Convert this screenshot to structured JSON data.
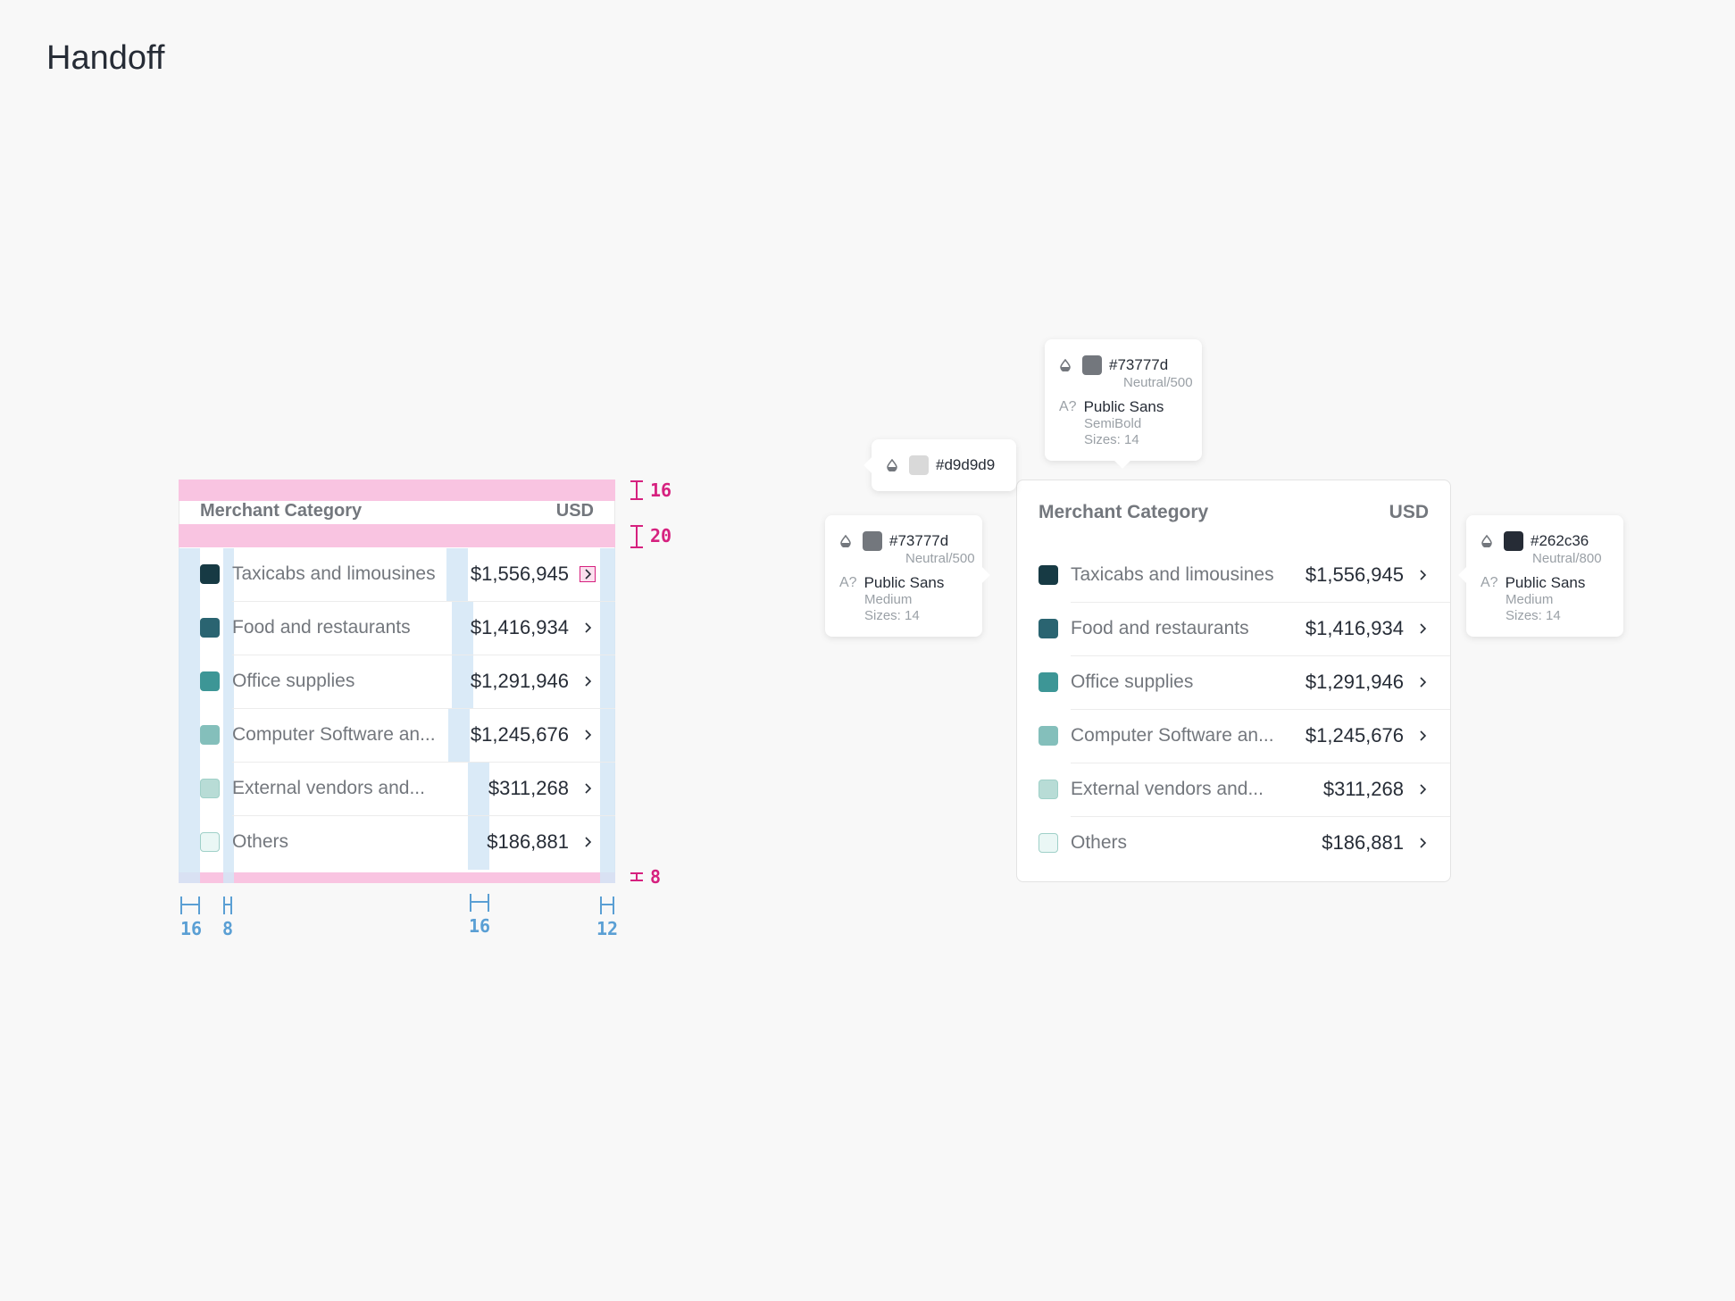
{
  "page": {
    "title": "Handoff"
  },
  "card": {
    "header": {
      "category": "Merchant Category",
      "currency": "USD"
    },
    "rows": [
      {
        "label": "Taxicabs and limousines",
        "value": "$1,556,945",
        "color": "#173a44"
      },
      {
        "label": "Food and restaurants",
        "value": "$1,416,934",
        "color": "#2a6471"
      },
      {
        "label": "Office supplies",
        "value": "$1,291,946",
        "color": "#3d9696"
      },
      {
        "label": "Computer Software an...",
        "value": "$1,245,676",
        "color": "#84bfbb"
      },
      {
        "label": "External vendors and...",
        "value": "$311,268",
        "color": "#b8dcd6"
      },
      {
        "label": "Others",
        "value": "$186,881",
        "color": "#eaf7f5"
      }
    ]
  },
  "redlines": {
    "vertical": [
      "16",
      "20",
      "8"
    ],
    "horizontal": [
      "16",
      "8",
      "16",
      "12"
    ]
  },
  "tooltips": {
    "border": {
      "hex": "#d9d9d9",
      "color": "#d9d9d9"
    },
    "header": {
      "hex": "#73777d",
      "token": "Neutral/500",
      "font": "Public Sans",
      "weight": "SemiBold",
      "sizes": "Sizes: 14",
      "color": "#73777d"
    },
    "label": {
      "hex": "#73777d",
      "token": "Neutral/500",
      "font": "Public Sans",
      "weight": "Medium",
      "sizes": "Sizes: 14",
      "color": "#73777d"
    },
    "value": {
      "hex": "#262c36",
      "token": "Neutral/800",
      "font": "Public Sans",
      "weight": "Medium",
      "sizes": "Sizes: 14",
      "color": "#262c36"
    }
  }
}
